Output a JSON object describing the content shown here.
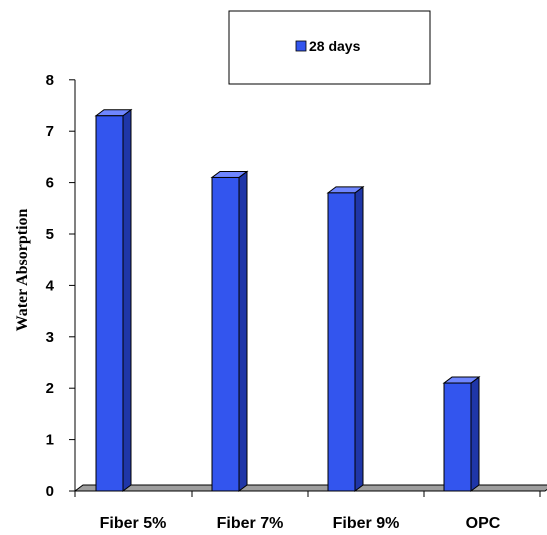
{
  "chart_data": {
    "type": "bar",
    "categories": [
      "Fiber 5%",
      "Fiber 7%",
      "Fiber 9%",
      "OPC"
    ],
    "series": [
      {
        "name": "28 days",
        "values": [
          7.3,
          6.1,
          5.8,
          2.1
        ]
      }
    ],
    "title": "",
    "xlabel": "",
    "ylabel": "Water Absorption",
    "ylim": [
      0,
      8
    ],
    "yticks": [
      "0",
      "1",
      "2",
      "3",
      "4",
      "5",
      "6",
      "7",
      "8"
    ],
    "grid": false,
    "legend_position": "top-right",
    "bar_color": "#3355ee",
    "bar_side_color": "#1f36a8",
    "bar_top_color": "#6f86ff",
    "floor_color": "#9e9e9e"
  }
}
